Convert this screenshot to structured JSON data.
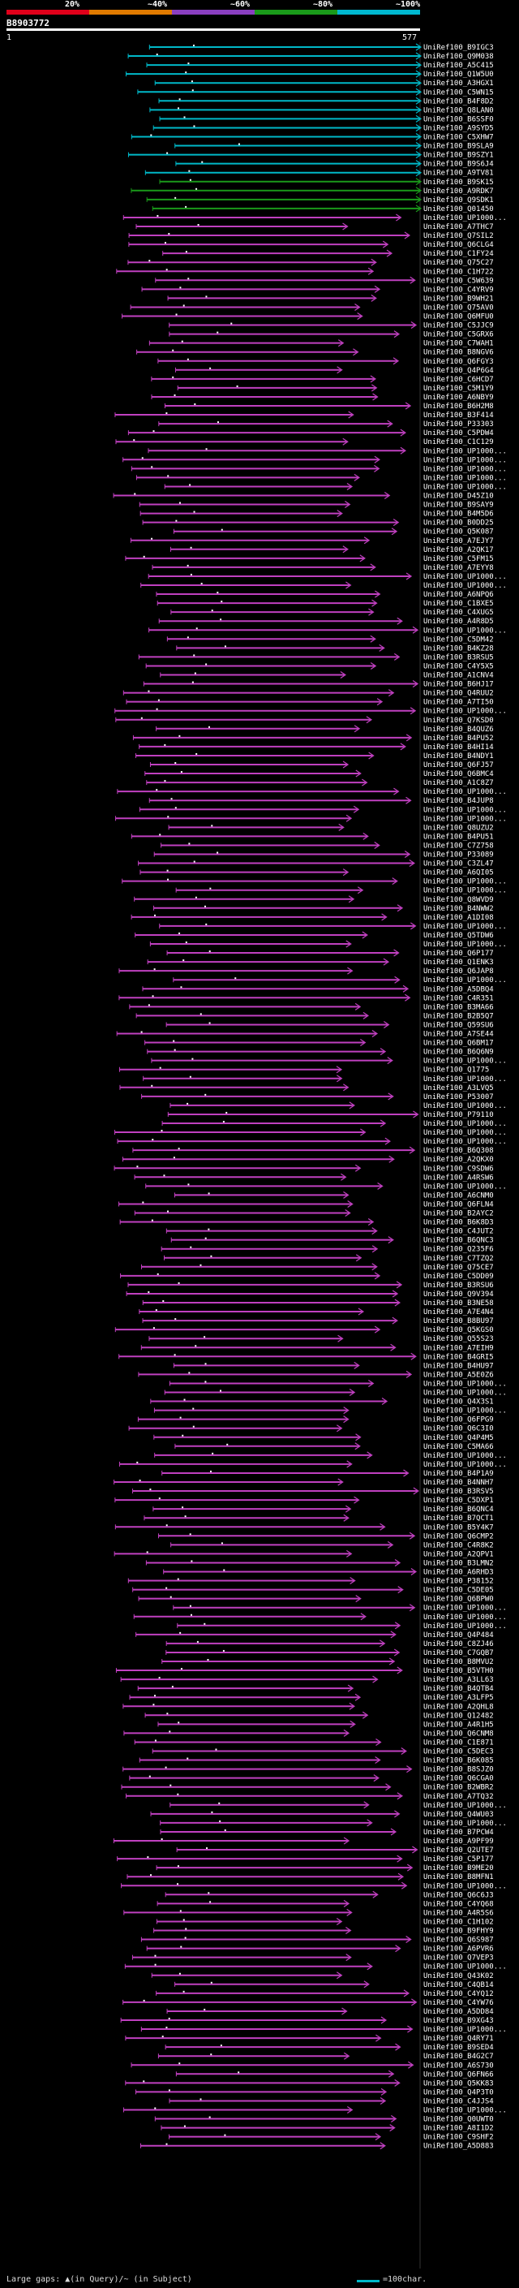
{
  "header": {
    "query_id": "B8903772",
    "start_pos": "1",
    "end_pos": "577",
    "scale": [
      {
        "label": "20%",
        "color": "#e0001a"
      },
      {
        "label": "~40%",
        "color": "#e07a00"
      },
      {
        "label": "~60%",
        "color": "#8a3fc0"
      },
      {
        "label": "~80%",
        "color": "#1a9a1a"
      },
      {
        "label": "~100%",
        "color": "#00b8d0"
      }
    ]
  },
  "colors": {
    "high": "#00b8c8",
    "mid": "#1a9a1a",
    "low": "#c040c0"
  },
  "hits": [
    {
      "id": "UniRef100_B9IGC3",
      "color": "cyan"
    },
    {
      "id": "UniRef100_Q9M038",
      "color": "cyan"
    },
    {
      "id": "UniRef100_A5C415",
      "color": "cyan"
    },
    {
      "id": "UniRef100_Q1W5U0",
      "color": "cyan"
    },
    {
      "id": "UniRef100_A3HGX1",
      "color": "cyan"
    },
    {
      "id": "UniRef100_C5WN15",
      "color": "cyan"
    },
    {
      "id": "UniRef100_B4F8D2",
      "color": "cyan"
    },
    {
      "id": "UniRef100_Q8LAN0",
      "color": "cyan"
    },
    {
      "id": "UniRef100_B6SSF0",
      "color": "cyan"
    },
    {
      "id": "UniRef100_A9SYD5",
      "color": "cyan"
    },
    {
      "id": "UniRef100_C5XHW7",
      "color": "cyan"
    },
    {
      "id": "UniRef100_B9SLA9",
      "color": "cyan"
    },
    {
      "id": "UniRef100_B9SZY1",
      "color": "cyan"
    },
    {
      "id": "UniRef100_B9S6J4",
      "color": "cyan"
    },
    {
      "id": "UniRef100_A9TV81",
      "color": "cyan"
    },
    {
      "id": "UniRef100_B9SK15",
      "color": "green"
    },
    {
      "id": "UniRef100_A9RDK7",
      "color": "green"
    },
    {
      "id": "UniRef100_Q9SDK1",
      "color": "green"
    },
    {
      "id": "UniRef100_Q01450",
      "color": "green"
    },
    {
      "id": "UniRef100_UP1000...",
      "color": "magenta"
    },
    {
      "id": "UniRef100_A7THC7",
      "color": "magenta"
    },
    {
      "id": "UniRef100_Q7SIL2",
      "color": "magenta"
    },
    {
      "id": "UniRef100_Q6CLG4",
      "color": "magenta"
    },
    {
      "id": "UniRef100_C1FY24",
      "color": "magenta"
    },
    {
      "id": "UniRef100_Q75C27",
      "color": "magenta"
    },
    {
      "id": "UniRef100_C1H722",
      "color": "magenta"
    },
    {
      "id": "UniRef100_C5W639",
      "color": "magenta"
    },
    {
      "id": "UniRef100_C4YRV9",
      "color": "magenta"
    },
    {
      "id": "UniRef100_B9WH21",
      "color": "magenta"
    },
    {
      "id": "UniRef100_Q75AV0",
      "color": "magenta"
    },
    {
      "id": "UniRef100_Q6MFU0",
      "color": "magenta"
    },
    {
      "id": "UniRef100_C5JJC9",
      "color": "magenta"
    },
    {
      "id": "UniRef100_C5GRX6",
      "color": "magenta"
    },
    {
      "id": "UniRef100_C7WAH1",
      "color": "magenta"
    },
    {
      "id": "UniRef100_B8NGV6",
      "color": "magenta"
    },
    {
      "id": "UniRef100_Q6FGY3",
      "color": "magenta"
    },
    {
      "id": "UniRef100_Q4P6G4",
      "color": "magenta"
    },
    {
      "id": "UniRef100_C6HCD7",
      "color": "magenta"
    },
    {
      "id": "UniRef100_C5M1Y9",
      "color": "magenta"
    },
    {
      "id": "UniRef100_A6NBY9",
      "color": "magenta"
    },
    {
      "id": "UniRef100_B6H2M8",
      "color": "magenta"
    },
    {
      "id": "UniRef100_B3F414",
      "color": "magenta"
    },
    {
      "id": "UniRef100_P33303",
      "color": "magenta"
    },
    {
      "id": "UniRef100_C5PDW4",
      "color": "magenta"
    },
    {
      "id": "UniRef100_C1C129",
      "color": "magenta"
    },
    {
      "id": "UniRef100_UP1000...",
      "color": "magenta"
    },
    {
      "id": "UniRef100_UP1000...",
      "color": "magenta"
    },
    {
      "id": "UniRef100_UP1000...",
      "color": "magenta"
    },
    {
      "id": "UniRef100_UP1000...",
      "color": "magenta"
    },
    {
      "id": "UniRef100_UP1000...",
      "color": "magenta"
    },
    {
      "id": "UniRef100_D45Z10",
      "color": "magenta"
    },
    {
      "id": "UniRef100_B9SAY9",
      "color": "magenta"
    },
    {
      "id": "UniRef100_B4M5D6",
      "color": "magenta"
    },
    {
      "id": "UniRef100_B0DD25",
      "color": "magenta"
    },
    {
      "id": "UniRef100_Q5K087",
      "color": "magenta"
    },
    {
      "id": "UniRef100_A7EJY7",
      "color": "magenta"
    },
    {
      "id": "UniRef100_A2QK17",
      "color": "magenta"
    },
    {
      "id": "UniRef100_C5FM15",
      "color": "magenta"
    },
    {
      "id": "UniRef100_A7EYY8",
      "color": "magenta"
    },
    {
      "id": "UniRef100_UP1000...",
      "color": "magenta"
    },
    {
      "id": "UniRef100_UP1000...",
      "color": "magenta"
    },
    {
      "id": "UniRef100_A6NPQ6",
      "color": "magenta"
    },
    {
      "id": "UniRef100_C1BXE5",
      "color": "magenta"
    },
    {
      "id": "UniRef100_C4XUG5",
      "color": "magenta"
    },
    {
      "id": "UniRef100_A4R8D5",
      "color": "magenta"
    },
    {
      "id": "UniRef100_UP1000...",
      "color": "magenta"
    },
    {
      "id": "UniRef100_C5DM42",
      "color": "magenta"
    },
    {
      "id": "UniRef100_B4KZ28",
      "color": "magenta"
    },
    {
      "id": "UniRef100_B3RSU5",
      "color": "magenta"
    },
    {
      "id": "UniRef100_C4Y5X5",
      "color": "magenta"
    },
    {
      "id": "UniRef100_A1CNV4",
      "color": "magenta"
    },
    {
      "id": "UniRef100_B6HJ17",
      "color": "magenta"
    },
    {
      "id": "UniRef100_Q4RUU2",
      "color": "magenta"
    },
    {
      "id": "UniRef100_A7TI50",
      "color": "magenta"
    },
    {
      "id": "UniRef100_UP1000...",
      "color": "magenta"
    },
    {
      "id": "UniRef100_Q7KSD0",
      "color": "magenta"
    },
    {
      "id": "UniRef100_B4QUZ6",
      "color": "magenta"
    },
    {
      "id": "UniRef100_B4PU52",
      "color": "magenta"
    },
    {
      "id": "UniRef100_B4HI14",
      "color": "magenta"
    },
    {
      "id": "UniRef100_B4NDY1",
      "color": "magenta"
    },
    {
      "id": "UniRef100_Q6FJ57",
      "color": "magenta"
    },
    {
      "id": "UniRef100_Q6BMC4",
      "color": "magenta"
    },
    {
      "id": "UniRef100_A1C8Z7",
      "color": "magenta"
    },
    {
      "id": "UniRef100_UP1000...",
      "color": "magenta"
    },
    {
      "id": "UniRef100_B4JUP8",
      "color": "magenta"
    },
    {
      "id": "UniRef100_UP1000...",
      "color": "magenta"
    },
    {
      "id": "UniRef100_UP1000...",
      "color": "magenta"
    },
    {
      "id": "UniRef100_Q8UZU2",
      "color": "magenta"
    },
    {
      "id": "UniRef100_B4PU51",
      "color": "magenta"
    },
    {
      "id": "UniRef100_C7Z758",
      "color": "magenta"
    },
    {
      "id": "UniRef100_P33089",
      "color": "magenta"
    },
    {
      "id": "UniRef100_C3ZL47",
      "color": "magenta"
    },
    {
      "id": "UniRef100_A6QI05",
      "color": "magenta"
    },
    {
      "id": "UniRef100_UP1000...",
      "color": "magenta"
    },
    {
      "id": "UniRef100_UP1000...",
      "color": "magenta"
    },
    {
      "id": "UniRef100_Q8WVD9",
      "color": "magenta"
    },
    {
      "id": "UniRef100_B4NWW2",
      "color": "magenta"
    },
    {
      "id": "UniRef100_A1DI08",
      "color": "magenta"
    },
    {
      "id": "UniRef100_UP1000...",
      "color": "magenta"
    },
    {
      "id": "UniRef100_Q5TDW6",
      "color": "magenta"
    },
    {
      "id": "UniRef100_UP1000...",
      "color": "magenta"
    },
    {
      "id": "UniRef100_Q6P177",
      "color": "magenta"
    },
    {
      "id": "UniRef100_Q1ENK3",
      "color": "magenta"
    },
    {
      "id": "UniRef100_Q6JAP8",
      "color": "magenta"
    },
    {
      "id": "UniRef100_UP1000...",
      "color": "magenta"
    },
    {
      "id": "UniRef100_A5DBQ4",
      "color": "magenta"
    },
    {
      "id": "UniRef100_C4R351",
      "color": "magenta"
    },
    {
      "id": "UniRef100_B3MA66",
      "color": "magenta"
    },
    {
      "id": "UniRef100_B2B5Q7",
      "color": "magenta"
    },
    {
      "id": "UniRef100_Q59SU6",
      "color": "magenta"
    },
    {
      "id": "UniRef100_A7SE44",
      "color": "magenta"
    },
    {
      "id": "UniRef100_Q6BM17",
      "color": "magenta"
    },
    {
      "id": "UniRef100_B6Q6N9",
      "color": "magenta"
    },
    {
      "id": "UniRef100_UP1000...",
      "color": "magenta"
    },
    {
      "id": "UniRef100_Q1775",
      "color": "magenta"
    },
    {
      "id": "UniRef100_UP1000...",
      "color": "magenta"
    },
    {
      "id": "UniRef100_A3LVQ5",
      "color": "magenta"
    },
    {
      "id": "UniRef100_P53007",
      "color": "magenta"
    },
    {
      "id": "UniRef100_UP1000...",
      "color": "magenta"
    },
    {
      "id": "UniRef100_P79110",
      "color": "magenta"
    },
    {
      "id": "UniRef100_UP1000...",
      "color": "magenta"
    },
    {
      "id": "UniRef100_UP1000...",
      "color": "magenta"
    },
    {
      "id": "UniRef100_UP1000...",
      "color": "magenta"
    },
    {
      "id": "UniRef100_B6Q308",
      "color": "magenta"
    },
    {
      "id": "UniRef100_A2QKX0",
      "color": "magenta"
    },
    {
      "id": "UniRef100_C9SDW6",
      "color": "magenta"
    },
    {
      "id": "UniRef100_A4RSW6",
      "color": "magenta"
    },
    {
      "id": "UniRef100_UP1000...",
      "color": "magenta"
    },
    {
      "id": "UniRef100_A6CNM0",
      "color": "magenta"
    },
    {
      "id": "UniRef100_Q6FLN4",
      "color": "magenta"
    },
    {
      "id": "UniRef100_B2AYC2",
      "color": "magenta"
    },
    {
      "id": "UniRef100_B6K8D3",
      "color": "magenta"
    },
    {
      "id": "UniRef100_C4JUT2",
      "color": "magenta"
    },
    {
      "id": "UniRef100_B6QNC3",
      "color": "magenta"
    },
    {
      "id": "UniRef100_Q235F6",
      "color": "magenta"
    },
    {
      "id": "UniRef100_C7TZQ2",
      "color": "magenta"
    },
    {
      "id": "UniRef100_Q75CE7",
      "color": "magenta"
    },
    {
      "id": "UniRef100_C5DD09",
      "color": "magenta"
    },
    {
      "id": "UniRef100_B3RSU6",
      "color": "magenta"
    },
    {
      "id": "UniRef100_Q9V394",
      "color": "magenta"
    },
    {
      "id": "UniRef100_B3NE58",
      "color": "magenta"
    },
    {
      "id": "UniRef100_A7E4N4",
      "color": "magenta"
    },
    {
      "id": "UniRef100_B8BU97",
      "color": "magenta"
    },
    {
      "id": "UniRef100_Q5KGS0",
      "color": "magenta"
    },
    {
      "id": "UniRef100_Q55S23",
      "color": "magenta"
    },
    {
      "id": "UniRef100_A7EIH9",
      "color": "magenta"
    },
    {
      "id": "UniRef100_B4GRI5",
      "color": "magenta"
    },
    {
      "id": "UniRef100_B4HU97",
      "color": "magenta"
    },
    {
      "id": "UniRef100_A5E0Z6",
      "color": "magenta"
    },
    {
      "id": "UniRef100_UP1000...",
      "color": "magenta"
    },
    {
      "id": "UniRef100_UP1000...",
      "color": "magenta"
    },
    {
      "id": "UniRef100_Q4X3S1",
      "color": "magenta"
    },
    {
      "id": "UniRef100_UP1000...",
      "color": "magenta"
    },
    {
      "id": "UniRef100_Q6FPG9",
      "color": "magenta"
    },
    {
      "id": "UniRef100_Q6C3I0",
      "color": "magenta"
    },
    {
      "id": "UniRef100_Q4P4M5",
      "color": "magenta"
    },
    {
      "id": "UniRef100_C5MA66",
      "color": "magenta"
    },
    {
      "id": "UniRef100_UP1000...",
      "color": "magenta"
    },
    {
      "id": "UniRef100_UP1000...",
      "color": "magenta"
    },
    {
      "id": "UniRef100_B4P1A9",
      "color": "magenta"
    },
    {
      "id": "UniRef100_B4NNH7",
      "color": "magenta"
    },
    {
      "id": "UniRef100_B3RSV5",
      "color": "magenta"
    },
    {
      "id": "UniRef100_C5DXP1",
      "color": "magenta"
    },
    {
      "id": "UniRef100_B6QNC4",
      "color": "magenta"
    },
    {
      "id": "UniRef100_B7QCT1",
      "color": "magenta"
    },
    {
      "id": "UniRef100_B5Y4K7",
      "color": "magenta"
    },
    {
      "id": "UniRef100_Q6CMP2",
      "color": "magenta"
    },
    {
      "id": "UniRef100_C4R8K2",
      "color": "magenta"
    },
    {
      "id": "UniRef100_A2QPV1",
      "color": "magenta"
    },
    {
      "id": "UniRef100_B3LMN2",
      "color": "magenta"
    },
    {
      "id": "UniRef100_A6RHD3",
      "color": "magenta"
    },
    {
      "id": "UniRef100_P38152",
      "color": "magenta"
    },
    {
      "id": "UniRef100_C5DE05",
      "color": "magenta"
    },
    {
      "id": "UniRef100_Q6BPW0",
      "color": "magenta"
    },
    {
      "id": "UniRef100_UP1000...",
      "color": "magenta"
    },
    {
      "id": "UniRef100_UP1000...",
      "color": "magenta"
    },
    {
      "id": "UniRef100_UP1000...",
      "color": "magenta"
    },
    {
      "id": "UniRef100_Q4P484",
      "color": "magenta"
    },
    {
      "id": "UniRef100_C8ZJ46",
      "color": "magenta"
    },
    {
      "id": "UniRef100_C7GQB7",
      "color": "magenta"
    },
    {
      "id": "UniRef100_B8MVU2",
      "color": "magenta"
    },
    {
      "id": "UniRef100_B5VTH0",
      "color": "magenta"
    },
    {
      "id": "UniRef100_A3LL63",
      "color": "magenta"
    },
    {
      "id": "UniRef100_B4QTB4",
      "color": "magenta"
    },
    {
      "id": "UniRef100_A3LFP5",
      "color": "magenta"
    },
    {
      "id": "UniRef100_A2QHL8",
      "color": "magenta"
    },
    {
      "id": "UniRef100_Q12482",
      "color": "magenta"
    },
    {
      "id": "UniRef100_A4R1H5",
      "color": "magenta"
    },
    {
      "id": "UniRef100_Q6CNM8",
      "color": "magenta"
    },
    {
      "id": "UniRef100_C1E871",
      "color": "magenta"
    },
    {
      "id": "UniRef100_C5DEC3",
      "color": "magenta"
    },
    {
      "id": "UniRef100_B6K085",
      "color": "magenta"
    },
    {
      "id": "UniRef100_B8SJZ0",
      "color": "magenta"
    },
    {
      "id": "UniRef100_Q6CGA0",
      "color": "magenta"
    },
    {
      "id": "UniRef100_B2WBR2",
      "color": "magenta"
    },
    {
      "id": "UniRef100_A7TQ32",
      "color": "magenta"
    },
    {
      "id": "UniRef100_UP1000...",
      "color": "magenta"
    },
    {
      "id": "UniRef100_Q4WU03",
      "color": "magenta"
    },
    {
      "id": "UniRef100_UP1000...",
      "color": "magenta"
    },
    {
      "id": "UniRef100_B7PCW4",
      "color": "magenta"
    },
    {
      "id": "UniRef100_A9PF99",
      "color": "magenta"
    },
    {
      "id": "UniRef100_Q2UTE7",
      "color": "magenta"
    },
    {
      "id": "UniRef100_C5P177",
      "color": "magenta"
    },
    {
      "id": "UniRef100_B9ME20",
      "color": "magenta"
    },
    {
      "id": "UniRef100_B8MFN1",
      "color": "magenta"
    },
    {
      "id": "UniRef100_UP1000...",
      "color": "magenta"
    },
    {
      "id": "UniRef100_Q6C6J3",
      "color": "magenta"
    },
    {
      "id": "UniRef100_C4YQ68",
      "color": "magenta"
    },
    {
      "id": "UniRef100_A4R5S6",
      "color": "magenta"
    },
    {
      "id": "UniRef100_C1H102",
      "color": "magenta"
    },
    {
      "id": "UniRef100_B9FHY9",
      "color": "magenta"
    },
    {
      "id": "UniRef100_Q6S987",
      "color": "magenta"
    },
    {
      "id": "UniRef100_A6PVR6",
      "color": "magenta"
    },
    {
      "id": "UniRef100_Q7VEP3",
      "color": "magenta"
    },
    {
      "id": "UniRef100_UP1000...",
      "color": "magenta"
    },
    {
      "id": "UniRef100_Q43K02",
      "color": "magenta"
    },
    {
      "id": "UniRef100_C4QB14",
      "color": "magenta"
    },
    {
      "id": "UniRef100_C4YQ12",
      "color": "magenta"
    },
    {
      "id": "UniRef100_C4YW76",
      "color": "magenta"
    },
    {
      "id": "UniRef100_A5DD84",
      "color": "magenta"
    },
    {
      "id": "UniRef100_B9XG43",
      "color": "magenta"
    },
    {
      "id": "UniRef100_UP1000...",
      "color": "magenta"
    },
    {
      "id": "UniRef100_Q4RY71",
      "color": "magenta"
    },
    {
      "id": "UniRef100_B9SED4",
      "color": "magenta"
    },
    {
      "id": "UniRef100_B4G2C7",
      "color": "magenta"
    },
    {
      "id": "UniRef100_A6S730",
      "color": "magenta"
    },
    {
      "id": "UniRef100_Q6FN66",
      "color": "magenta"
    },
    {
      "id": "UniRef100_Q5KK83",
      "color": "magenta"
    },
    {
      "id": "UniRef100_Q4P3T0",
      "color": "magenta"
    },
    {
      "id": "UniRef100_C4JJS4",
      "color": "magenta"
    },
    {
      "id": "UniRef100_UP1000...",
      "color": "magenta"
    },
    {
      "id": "UniRef100_Q0UWT0",
      "color": "magenta"
    },
    {
      "id": "UniRef100_A8I1D2",
      "color": "magenta"
    },
    {
      "id": "UniRef100_C9SHF2",
      "color": "magenta"
    },
    {
      "id": "UniRef100_A5D883",
      "color": "magenta"
    }
  ],
  "footer": {
    "gap_text": "Large gaps: ▲(in Query)/~ (in Subject)",
    "legend_text": "=100char."
  }
}
